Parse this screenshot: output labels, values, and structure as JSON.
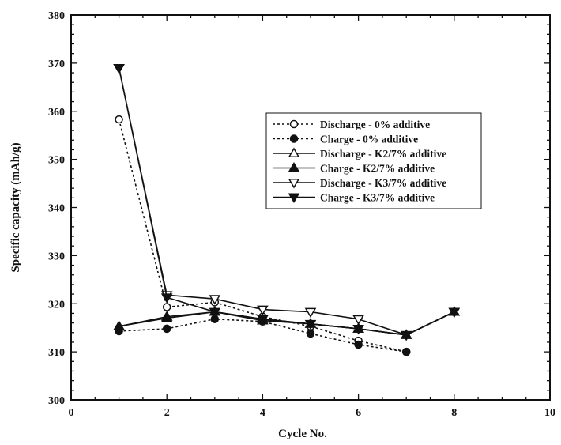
{
  "chart_data": {
    "type": "line",
    "title": "",
    "xlabel": "Cycle No.",
    "ylabel": "Specific capacity (mAh/g)",
    "xlim": [
      0,
      10
    ],
    "ylim": [
      300,
      380
    ],
    "xticks": [
      0,
      2,
      4,
      6,
      8,
      10
    ],
    "yticks": [
      300,
      310,
      320,
      330,
      340,
      350,
      360,
      370,
      380
    ],
    "grid": false,
    "legend_position": "center-right",
    "series": [
      {
        "name": "Discharge - 0% additive",
        "marker": "open-circle",
        "style": "dashed",
        "x": [
          1,
          2,
          3,
          4,
          5,
          6,
          7
        ],
        "y": [
          358.3,
          319.3,
          320.3,
          317.3,
          315.3,
          312.3,
          310.0
        ]
      },
      {
        "name": "Charge - 0% additive",
        "marker": "filled-circle",
        "style": "dashed",
        "x": [
          1,
          2,
          3,
          4,
          5,
          6,
          7
        ],
        "y": [
          314.3,
          314.8,
          316.8,
          316.3,
          313.8,
          311.5,
          310.0
        ]
      },
      {
        "name": "Discharge - K2/7% additive",
        "marker": "open-triangle-up",
        "style": "solid",
        "x": [
          1,
          2,
          3,
          4,
          5,
          6,
          7,
          8
        ],
        "y": [
          315.3,
          317.3,
          318.3,
          316.8,
          315.8,
          314.8,
          313.5,
          318.3
        ]
      },
      {
        "name": "Charge - K2/7% additive",
        "marker": "filled-triangle-up",
        "style": "solid",
        "x": [
          1,
          2,
          3,
          4,
          5,
          6,
          7,
          8
        ],
        "y": [
          315.3,
          317.0,
          318.3,
          316.5,
          315.8,
          314.8,
          313.5,
          318.3
        ]
      },
      {
        "name": "Discharge - K3/7% additive",
        "marker": "open-triangle-down",
        "style": "solid",
        "x": [
          1,
          2,
          3,
          4,
          5,
          6,
          7,
          8
        ],
        "y": [
          369.0,
          321.8,
          321.0,
          318.8,
          318.3,
          316.8,
          313.5,
          318.3
        ]
      },
      {
        "name": "Charge - K3/7% additive",
        "marker": "filled-triangle-down",
        "style": "solid",
        "x": [
          1,
          2,
          3,
          4,
          5,
          6,
          7,
          8
        ],
        "y": [
          369.0,
          321.3,
          318.3,
          316.8,
          315.8,
          314.8,
          313.5,
          318.3
        ]
      }
    ]
  }
}
